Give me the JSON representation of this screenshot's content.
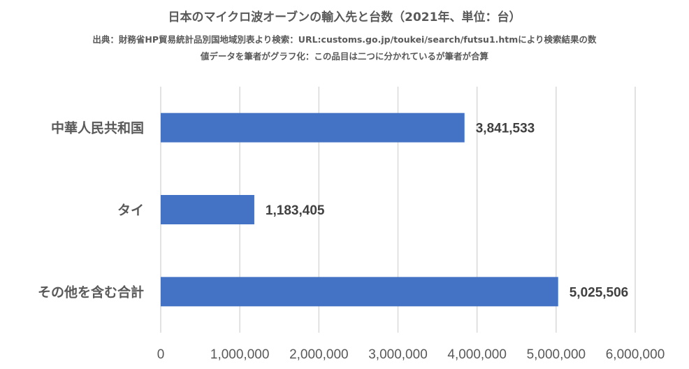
{
  "chart_data": {
    "type": "bar",
    "orientation": "horizontal",
    "title": "日本のマイクロ波オーブンの輸入先と台数（2021年、単位：台）",
    "subtitle_line1": "出典：財務省HP貿易統計品別国地域別表より検索：URL:customs.go.jp/toukei/search/futsu1.htmにより検索結果の数",
    "subtitle_line2": "値データを筆者がグラフ化：この品目は二つに分かれているが筆者が合算",
    "categories": [
      "中華人民共和国",
      "タイ",
      "その他を含む合計"
    ],
    "values": [
      3841533,
      1183405,
      5025506
    ],
    "value_labels": [
      "3,841,533",
      "1,183,405",
      "5,025,506"
    ],
    "xlim": [
      0,
      6000000
    ],
    "x_ticks": [
      0,
      1000000,
      2000000,
      3000000,
      4000000,
      5000000,
      6000000
    ],
    "x_tick_labels": [
      "0",
      "1,000,000",
      "2,000,000",
      "3,000,000",
      "4,000,000",
      "5,000,000",
      "6,000,000"
    ],
    "grid": true,
    "bar_color": "#4472C4",
    "gridline_color": "#D9D9D9"
  }
}
